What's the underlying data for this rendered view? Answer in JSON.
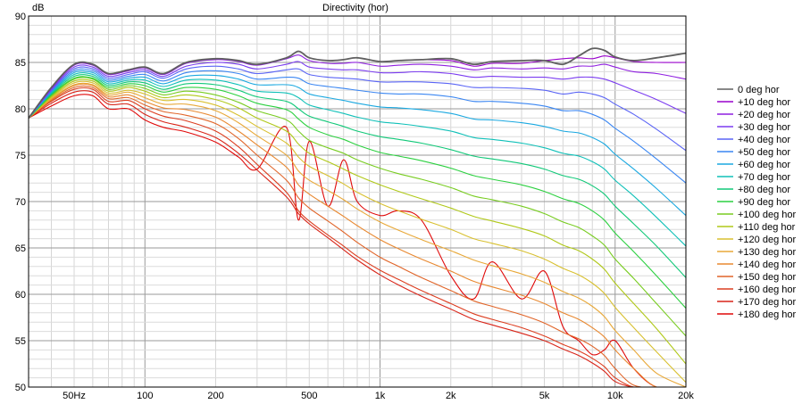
{
  "chart_data": {
    "type": "line",
    "title": "Directivity (hor)",
    "ylabel": "dB",
    "xscale": "log",
    "xlim": [
      32,
      20000
    ],
    "ylim": [
      50,
      90
    ],
    "grid": true,
    "legend_position": "right",
    "x_ticks": [
      {
        "value": 50,
        "label": "50Hz"
      },
      {
        "value": 100,
        "label": "100"
      },
      {
        "value": 200,
        "label": "200"
      },
      {
        "value": 500,
        "label": "500"
      },
      {
        "value": 1000,
        "label": "1k"
      },
      {
        "value": 2000,
        "label": "2k"
      },
      {
        "value": 5000,
        "label": "5k"
      },
      {
        "value": 10000,
        "label": "10k"
      },
      {
        "value": 20000,
        "label": "20k"
      }
    ],
    "y_ticks": [
      {
        "value": 90,
        "label": "90"
      },
      {
        "value": 85,
        "label": "85"
      },
      {
        "value": 80,
        "label": "80"
      },
      {
        "value": 75,
        "label": "75"
      },
      {
        "value": 70,
        "label": "70"
      },
      {
        "value": 65,
        "label": "65"
      },
      {
        "value": 60,
        "label": "60"
      },
      {
        "value": 55,
        "label": "55"
      },
      {
        "value": 50,
        "label": "50"
      }
    ],
    "x": [
      32,
      40,
      50,
      60,
      70,
      85,
      100,
      120,
      150,
      200,
      250,
      300,
      400,
      450,
      500,
      600,
      700,
      800,
      1000,
      1200,
      1500,
      2000,
      2500,
      3000,
      4000,
      5000,
      6000,
      7000,
      8000,
      9000,
      10000,
      12000,
      15000,
      20000
    ],
    "series": [
      {
        "name": "0 deg hor",
        "color": "#606060",
        "values": [
          79,
          82.3,
          84.8,
          84.8,
          83.8,
          84.2,
          84.5,
          83.8,
          85,
          85.4,
          85.2,
          84.8,
          85.5,
          86.2,
          85.5,
          85.2,
          85.3,
          85.5,
          85.1,
          85.2,
          85.3,
          85.4,
          84.8,
          85.1,
          85.2,
          85.2,
          84.8,
          85.7,
          86.5,
          86.3,
          85.6,
          85.2,
          85.5,
          86.0
        ]
      },
      {
        "name": "+10 deg hor",
        "color": "#9900cc",
        "values": [
          79,
          82.3,
          84.8,
          84.8,
          83.8,
          84.2,
          84.5,
          83.8,
          85,
          85.4,
          85.2,
          84.8,
          85.5,
          86.2,
          85.5,
          85.2,
          85.3,
          85.5,
          85.1,
          85.2,
          85.3,
          85.2,
          84.6,
          84.9,
          84.9,
          85.2,
          85.4,
          85.5,
          85.4,
          85.7,
          85.5,
          85.1,
          85.0,
          85.0
        ]
      },
      {
        "name": "+20 deg hor",
        "color": "#8f1ee0",
        "values": [
          79,
          82.2,
          84.7,
          84.7,
          83.7,
          84.1,
          84.4,
          83.7,
          84.9,
          85.3,
          85.1,
          84.7,
          85.4,
          85.8,
          85.2,
          84.9,
          84.9,
          85.0,
          84.6,
          84.7,
          84.8,
          84.6,
          84.2,
          84.4,
          84.3,
          84.4,
          84.3,
          84.6,
          84.6,
          84.8,
          84.5,
          84.0,
          83.8,
          83.2
        ]
      },
      {
        "name": "+30 deg hor",
        "color": "#7b3cf0",
        "values": [
          79,
          82.1,
          84.5,
          84.5,
          83.5,
          83.9,
          84.2,
          83.5,
          84.6,
          85.0,
          84.8,
          84.3,
          84.8,
          85.1,
          84.5,
          84.3,
          84.2,
          84.2,
          83.9,
          83.9,
          84.0,
          83.8,
          83.4,
          83.5,
          83.4,
          83.4,
          83.2,
          83.4,
          83.4,
          83.2,
          82.8,
          82.0,
          81.0,
          79.5
        ]
      },
      {
        "name": "+40 deg hor",
        "color": "#5a64f5",
        "values": [
          79,
          82.0,
          84.3,
          84.3,
          83.3,
          83.7,
          84.0,
          83.3,
          84.3,
          84.6,
          84.3,
          83.8,
          84.2,
          84.3,
          83.7,
          83.4,
          83.3,
          83.2,
          82.9,
          82.9,
          82.9,
          82.7,
          82.3,
          82.3,
          82.2,
          82.0,
          81.6,
          81.8,
          81.6,
          81.2,
          80.5,
          79.4,
          77.8,
          75.5
        ]
      },
      {
        "name": "+50 deg hor",
        "color": "#3a86f2",
        "values": [
          79,
          81.9,
          84.1,
          84.1,
          83.1,
          83.5,
          83.7,
          83.0,
          83.9,
          84.1,
          83.8,
          83.2,
          83.4,
          83.3,
          82.7,
          82.4,
          82.2,
          82.0,
          81.7,
          81.6,
          81.6,
          81.3,
          80.8,
          80.8,
          80.6,
          80.3,
          79.8,
          79.8,
          79.4,
          78.8,
          77.9,
          76.5,
          74.6,
          72.0
        ]
      },
      {
        "name": "+60 deg hor",
        "color": "#1aa8e0",
        "values": [
          79,
          81.8,
          83.9,
          83.9,
          82.9,
          83.3,
          83.4,
          82.7,
          83.5,
          83.6,
          83.2,
          82.6,
          82.6,
          82.3,
          81.6,
          81.2,
          80.9,
          80.6,
          80.2,
          80.1,
          79.9,
          79.5,
          78.9,
          78.8,
          78.5,
          78.1,
          77.6,
          77.4,
          76.9,
          76.2,
          75.1,
          73.5,
          71.4,
          68.5
        ]
      },
      {
        "name": "+70 deg hor",
        "color": "#10c0b8",
        "values": [
          79,
          81.7,
          83.7,
          83.7,
          82.7,
          83.1,
          83.1,
          82.4,
          83.1,
          83.1,
          82.6,
          81.9,
          81.7,
          81.2,
          80.4,
          79.9,
          79.5,
          79.1,
          78.6,
          78.4,
          78.1,
          77.6,
          76.9,
          76.7,
          76.3,
          75.8,
          75.2,
          74.9,
          74.3,
          73.5,
          72.3,
          70.6,
          68.3,
          65.2
        ]
      },
      {
        "name": "+80 deg hor",
        "color": "#10c878",
        "values": [
          79,
          81.6,
          83.5,
          83.5,
          82.5,
          82.9,
          82.8,
          82.1,
          82.7,
          82.6,
          82.0,
          81.3,
          80.8,
          80.0,
          79.2,
          78.6,
          78.1,
          77.6,
          77.0,
          76.7,
          76.3,
          75.6,
          74.9,
          74.6,
          74.1,
          73.5,
          72.8,
          72.4,
          71.7,
          70.8,
          69.5,
          67.6,
          65.2,
          61.8
        ]
      },
      {
        "name": "+90 deg hor",
        "color": "#2cd040",
        "values": [
          79,
          81.5,
          83.3,
          83.3,
          82.3,
          82.7,
          82.5,
          81.8,
          82.3,
          82.1,
          81.4,
          80.6,
          79.9,
          78.9,
          78.0,
          77.2,
          76.7,
          76.1,
          75.3,
          74.9,
          74.4,
          73.6,
          72.8,
          72.4,
          71.8,
          71.1,
          70.3,
          69.8,
          69.0,
          68.0,
          66.6,
          64.6,
          62.0,
          58.5
        ]
      },
      {
        "name": "+100 deg hor",
        "color": "#78cc20",
        "values": [
          79,
          81.4,
          83.2,
          83.2,
          82.1,
          82.5,
          82.2,
          81.5,
          81.9,
          81.5,
          80.7,
          79.8,
          78.8,
          77.6,
          76.6,
          75.8,
          75.2,
          74.5,
          73.6,
          73.0,
          72.4,
          71.5,
          70.6,
          70.2,
          69.5,
          68.7,
          67.8,
          67.2,
          66.3,
          65.3,
          63.8,
          61.7,
          59.0,
          55.5
        ]
      },
      {
        "name": "+110 deg hor",
        "color": "#b0c818",
        "values": [
          79,
          81.3,
          83.0,
          83.0,
          81.9,
          82.3,
          81.9,
          81.2,
          81.5,
          81.0,
          80.1,
          79.0,
          77.6,
          76.2,
          75.2,
          74.3,
          73.5,
          72.8,
          71.8,
          71.1,
          70.3,
          69.3,
          68.4,
          67.9,
          67.1,
          66.3,
          65.3,
          64.7,
          63.8,
          62.7,
          61.2,
          59.0,
          56.3,
          52.5
        ]
      },
      {
        "name": "+120 deg hor",
        "color": "#d8c030",
        "values": [
          79,
          81.2,
          82.8,
          82.8,
          81.7,
          82.0,
          81.6,
          80.9,
          81.0,
          80.4,
          79.3,
          78.1,
          76.3,
          74.8,
          73.8,
          72.8,
          71.9,
          71.0,
          69.8,
          69.0,
          68.1,
          67.0,
          66.0,
          65.5,
          64.7,
          63.8,
          62.8,
          62.1,
          61.2,
          60.1,
          58.6,
          56.4,
          53.8,
          50.5
        ]
      },
      {
        "name": "+130 deg hor",
        "color": "#e8a838",
        "values": [
          79,
          81.1,
          82.6,
          82.6,
          81.5,
          81.8,
          81.2,
          80.5,
          80.5,
          79.8,
          78.5,
          77.1,
          75.0,
          73.3,
          72.3,
          71.2,
          70.2,
          69.2,
          67.8,
          66.9,
          65.9,
          64.7,
          63.7,
          63.1,
          62.2,
          61.3,
          60.3,
          59.6,
          58.7,
          57.6,
          56.1,
          54.0,
          51.5,
          50.0
        ]
      },
      {
        "name": "+140 deg hor",
        "color": "#e88830",
        "values": [
          79,
          81.0,
          82.5,
          82.5,
          81.3,
          81.5,
          80.8,
          80.1,
          79.9,
          79.1,
          77.6,
          76.1,
          73.7,
          71.8,
          70.8,
          69.5,
          68.4,
          67.4,
          65.9,
          64.9,
          63.8,
          62.5,
          61.4,
          60.8,
          59.9,
          59.0,
          58.0,
          57.3,
          56.4,
          55.4,
          54.0,
          52.0,
          50.0,
          50.0
        ]
      },
      {
        "name": "+150 deg hor",
        "color": "#e06428",
        "values": [
          79,
          80.9,
          82.3,
          82.3,
          81.1,
          81.2,
          80.4,
          79.7,
          79.3,
          78.4,
          76.8,
          75.0,
          72.3,
          70.4,
          69.3,
          67.9,
          66.7,
          65.6,
          64.0,
          63.0,
          61.8,
          60.4,
          59.3,
          58.7,
          57.8,
          56.9,
          55.9,
          55.2,
          54.4,
          53.4,
          52.0,
          50.2,
          50.0,
          50.0
        ]
      },
      {
        "name": "+160 deg hor",
        "color": "#dc3e20",
        "values": [
          79,
          80.8,
          82.1,
          82.1,
          80.8,
          80.9,
          80.0,
          79.2,
          78.7,
          77.6,
          75.9,
          74.0,
          71.0,
          69.0,
          67.9,
          66.4,
          65.2,
          64.1,
          62.6,
          61.6,
          60.4,
          59.0,
          57.9,
          57.3,
          56.4,
          55.5,
          54.6,
          53.9,
          53.1,
          52.2,
          51.0,
          50.0,
          50.0,
          50.0
        ]
      },
      {
        "name": "+170 deg hor",
        "color": "#d82418",
        "values": [
          79,
          80.6,
          81.8,
          81.8,
          80.5,
          80.5,
          79.4,
          78.6,
          78.0,
          76.9,
          75.2,
          73.4,
          70.5,
          68.7,
          67.6,
          66.1,
          64.8,
          63.7,
          62.1,
          61.0,
          59.8,
          58.4,
          57.3,
          56.7,
          55.8,
          55.0,
          54.1,
          53.4,
          52.6,
          51.7,
          50.6,
          50.0,
          50.0,
          50.0
        ]
      },
      {
        "name": "+180 deg hor",
        "color": "#e00808",
        "values": [
          79,
          80.3,
          81.4,
          81.4,
          80.0,
          80.0,
          78.8,
          78.0,
          77.5,
          76.4,
          74.8,
          73.5,
          78.0,
          68.0,
          76.5,
          69.5,
          74.5,
          70.0,
          68.5,
          69.0,
          68.0,
          62.0,
          59.5,
          63.5,
          59.5,
          62.5,
          56.5,
          55.0,
          53.5,
          54.0,
          55.0,
          52.0,
          50.0,
          50.0
        ]
      }
    ]
  }
}
